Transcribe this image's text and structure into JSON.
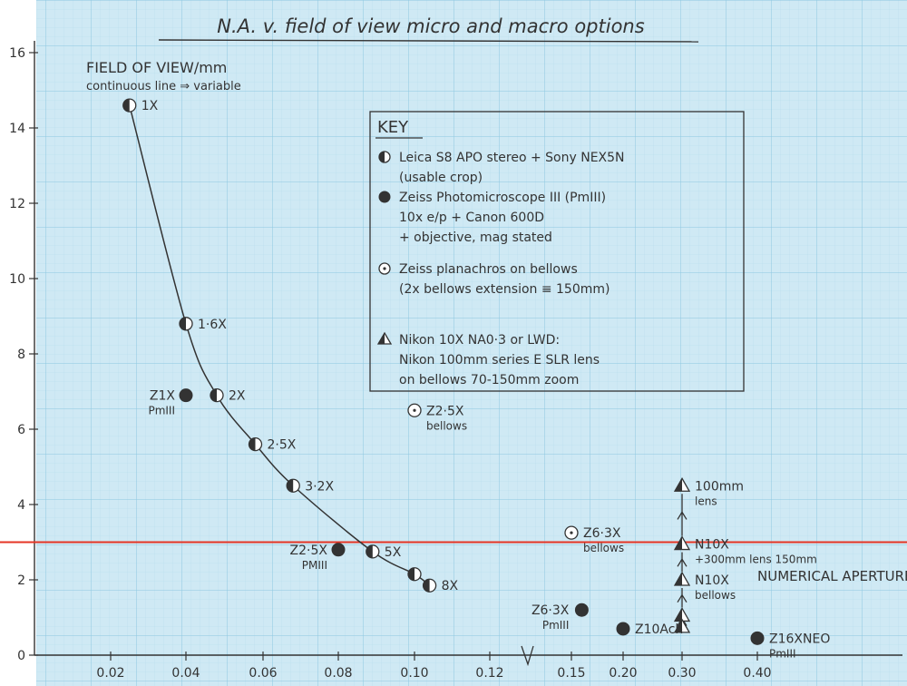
{
  "chart_data": {
    "type": "scatter",
    "title": "N.A. v. field of view micro and macro options",
    "ylabel": "FIELD OF VIEW/mm",
    "ylabel_note": "continuous line ⇒ variable",
    "xlabel": "NUMERICAL APERTURE",
    "y_ticks": [
      "0",
      "2",
      "4",
      "6",
      "8",
      "10",
      "12",
      "14",
      "16"
    ],
    "x_ticks": [
      "0.02",
      "0.04",
      "0.06",
      "0.08",
      "0.10",
      "0.12",
      "0.15",
      "0.20",
      "0.30",
      "0.40"
    ],
    "ylim": [
      0,
      16
    ],
    "grid": true,
    "reference_line": {
      "y": 3,
      "color": "#e53525"
    },
    "series": [
      {
        "name": "Leica S8 APO stereo + Sony NEX5N (usable crop)",
        "marker": "half",
        "connected": true,
        "points": [
          {
            "x": 0.025,
            "y": 14.6,
            "label": "1X"
          },
          {
            "x": 0.04,
            "y": 8.8,
            "label": "1·6X"
          },
          {
            "x": 0.048,
            "y": 6.9,
            "label": "2X"
          },
          {
            "x": 0.058,
            "y": 5.6,
            "label": "2·5X"
          },
          {
            "x": 0.068,
            "y": 4.5,
            "label": "3·2X"
          },
          {
            "x": 0.089,
            "y": 2.75,
            "label": "5X"
          },
          {
            "x": 0.1,
            "y": 2.15,
            "label": ""
          },
          {
            "x": 0.104,
            "y": 1.85,
            "label": "8X"
          }
        ]
      },
      {
        "name": "Zeiss Photomicroscope III (PmIII) 10x e/p + Canon 600D + objective, mag stated",
        "marker": "filled",
        "points": [
          {
            "x": 0.04,
            "y": 6.9,
            "label": "Z1X PmIII"
          },
          {
            "x": 0.08,
            "y": 2.8,
            "label": "Z2·5X PMIII"
          },
          {
            "x": 0.16,
            "y": 1.2,
            "label": "Z6·3X PmIII"
          },
          {
            "x": 0.2,
            "y": 0.7,
            "label": "Z10Ach"
          },
          {
            "x": 0.4,
            "y": 0.45,
            "label": "Z16XNEO PmIII"
          }
        ]
      },
      {
        "name": "Zeiss planachros on bellows (2x bellows extension ≡ 150mm)",
        "marker": "dot",
        "points": [
          {
            "x": 0.1,
            "y": 6.5,
            "label": "Z2·5X bellows"
          },
          {
            "x": 0.15,
            "y": 3.25,
            "label": "Z6·3X bellows"
          }
        ]
      },
      {
        "name": "Nikon 10X NA0·3 or LWD: Nikon 100mm series E SLR lens on bellows 70-150mm zoom",
        "marker": "triangle-half",
        "connected": true,
        "points": [
          {
            "x": 0.3,
            "y": 4.5,
            "label": "100mm lens"
          },
          {
            "x": 0.3,
            "y": 2.95,
            "label": "N10X +300mm lens 150mm"
          },
          {
            "x": 0.3,
            "y": 2.0,
            "label": "N10X bellows"
          },
          {
            "x": 0.3,
            "y": 1.05,
            "label": ""
          },
          {
            "x": 0.3,
            "y": 0.75,
            "label": ""
          }
        ]
      }
    ]
  },
  "key": {
    "heading": "KEY",
    "entries": [
      {
        "marker": "half",
        "lines": [
          "Leica S8 APO stereo + Sony NEX5N",
          "(usable crop)"
        ]
      },
      {
        "marker": "filled",
        "lines": [
          "Zeiss Photomicroscope III (PmIII)",
          "10x e/p + Canon 600D",
          "+ objective, mag stated"
        ]
      },
      {
        "marker": "dot",
        "lines": [
          "Zeiss planachros on bellows",
          "(2x bellows extension ≡ 150mm)"
        ]
      },
      {
        "marker": "triangle-half",
        "lines": [
          "Nikon 10X NA0·3 or LWD:",
          "Nikon 100mm series E SLR lens",
          "on bellows 70-150mm zoom"
        ]
      }
    ]
  },
  "colors": {
    "paper": "#cfe9f4",
    "grid_minor": "#b6dcec",
    "grid_major": "#8cc7e1",
    "ink": "#333333",
    "red_line": "#e53525"
  }
}
